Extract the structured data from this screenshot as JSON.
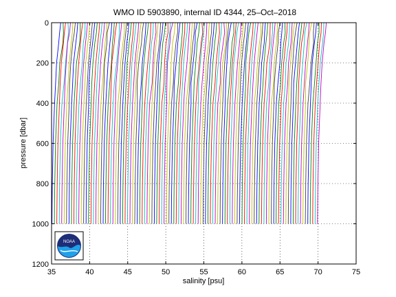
{
  "chart_data": {
    "type": "line",
    "title": "WMO ID 5903890, internal ID 4344, 25–Oct–2018",
    "xlabel": "salinity [psu]",
    "ylabel": "pressure [dbar]",
    "xlim": [
      35,
      75
    ],
    "ylim": [
      1200,
      0
    ],
    "y_reversed": true,
    "grid": "dotted",
    "x_ticks": [
      "35",
      "40",
      "45",
      "50",
      "55",
      "60",
      "65",
      "70",
      "75"
    ],
    "y_ticks": [
      "0",
      "200",
      "400",
      "600",
      "800",
      "1000",
      "1200"
    ],
    "pressure_range": [
      0,
      1000
    ],
    "profile_count": 110,
    "offset_start": 36.2,
    "offset_step": 0.32,
    "base_profile": {
      "pressure": [
        0,
        50,
        100,
        200,
        300,
        400,
        500,
        600,
        700,
        800,
        900,
        1000
      ],
      "salinity": [
        35.55,
        35.45,
        35.3,
        35.05,
        34.9,
        34.75,
        34.65,
        34.55,
        34.5,
        34.45,
        34.42,
        34.4
      ]
    },
    "series_colors": [
      "#0000ff",
      "#008000",
      "#ff0000",
      "#00bfbf",
      "#bf00bf",
      "#bfbf00",
      "#404040"
    ]
  },
  "logo": {
    "text": "NOAA",
    "colors": {
      "navy": "#1e2d78",
      "sky": "#1fa0e8"
    }
  }
}
